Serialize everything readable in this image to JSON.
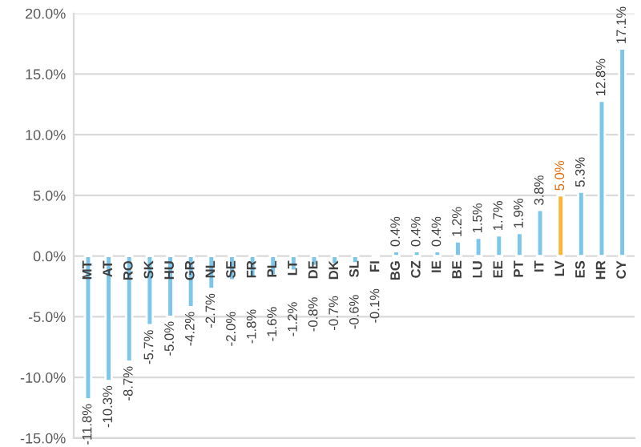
{
  "chart_data": {
    "type": "bar",
    "categories": [
      "MT",
      "AT",
      "RO",
      "SK",
      "HU",
      "GR",
      "NL",
      "SE",
      "FR",
      "PL",
      "LT",
      "DE",
      "DK",
      "SL",
      "FI",
      "BG",
      "CZ",
      "IE",
      "BE",
      "LU",
      "EE",
      "PT",
      "IT",
      "LV",
      "ES",
      "HR",
      "CY"
    ],
    "values": [
      -11.8,
      -10.3,
      -8.7,
      -5.7,
      -5.0,
      -4.2,
      -2.7,
      -2.0,
      -1.8,
      -1.6,
      -1.2,
      -0.8,
      -0.7,
      -0.6,
      -0.1,
      0.4,
      0.4,
      0.4,
      1.2,
      1.5,
      1.7,
      1.9,
      3.8,
      5.0,
      5.3,
      12.8,
      17.1
    ],
    "value_labels": [
      "-11.8%",
      "-10.3%",
      "-8.7%",
      "-5.7%",
      "-5.0%",
      "-4.2%",
      "-2.7%",
      "-2.0%",
      "-1.8%",
      "-1.6%",
      "-1.2%",
      "-0.8%",
      "-0.7%",
      "-0.6%",
      "-0.1%",
      "0.4%",
      "0.4%",
      "0.4%",
      "1.2%",
      "1.5%",
      "1.7%",
      "1.9%",
      "3.8%",
      "5.0%",
      "5.3%",
      "12.8%",
      "17.1%"
    ],
    "colors": [
      "#7cc6ea",
      "#7cc6ea",
      "#7cc6ea",
      "#7cc6ea",
      "#7cc6ea",
      "#7cc6ea",
      "#7cc6ea",
      "#7cc6ea",
      "#7cc6ea",
      "#7cc6ea",
      "#7cc6ea",
      "#7cc6ea",
      "#7cc6ea",
      "#7cc6ea",
      "#7cc6ea",
      "#7cc6ea",
      "#7cc6ea",
      "#7cc6ea",
      "#7cc6ea",
      "#7cc6ea",
      "#7cc6ea",
      "#7cc6ea",
      "#7cc6ea",
      "#f9b43a",
      "#7cc6ea",
      "#7cc6ea",
      "#7cc6ea"
    ],
    "ylim": [
      -15,
      20
    ],
    "yticks": [
      {
        "value": -15,
        "label": "-15.0%"
      },
      {
        "value": -10,
        "label": "-10.0%"
      },
      {
        "value": -5,
        "label": "-5.0%"
      },
      {
        "value": 0,
        "label": "0.0%"
      },
      {
        "value": 5,
        "label": "5.0%"
      },
      {
        "value": 10,
        "label": "10.0%"
      },
      {
        "value": 15,
        "label": "15.0%"
      },
      {
        "value": 20,
        "label": "20.0%"
      }
    ],
    "grid": "y"
  }
}
